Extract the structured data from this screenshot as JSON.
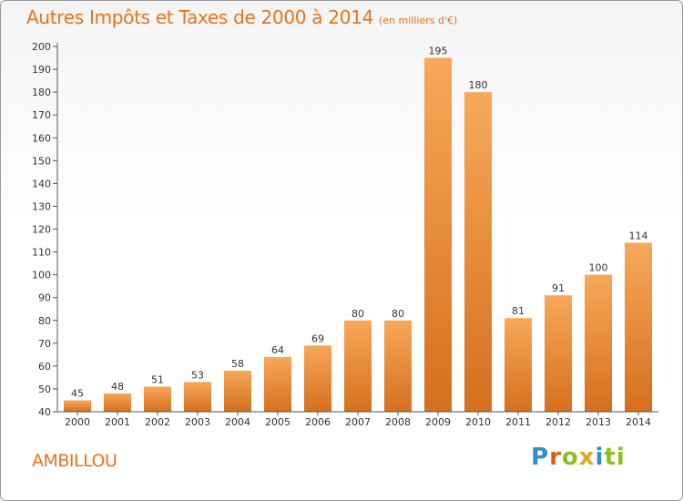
{
  "title": "Autres Impôts et Taxes de 2000 à 2014",
  "subtitle": "(en milliers d'€)",
  "commune": "AMBILLOU",
  "brand": "Proxiti",
  "colors": {
    "accent": "#e8731b",
    "bar_light": "#f7a85a",
    "bar_dark": "#d4701d"
  },
  "chart_data": {
    "type": "bar",
    "title": "Autres Impôts et Taxes de 2000 à 2014",
    "xlabel": "",
    "ylabel": "",
    "categories": [
      "2000",
      "2001",
      "2002",
      "2003",
      "2004",
      "2005",
      "2006",
      "2007",
      "2008",
      "2009",
      "2010",
      "2011",
      "2012",
      "2013",
      "2014"
    ],
    "values": [
      45,
      48,
      51,
      53,
      58,
      64,
      69,
      80,
      80,
      195,
      180,
      81,
      91,
      100,
      114
    ],
    "ylim": [
      40,
      200
    ],
    "yticks": [
      40,
      50,
      60,
      70,
      80,
      90,
      100,
      110,
      120,
      130,
      140,
      150,
      160,
      170,
      180,
      190,
      200
    ],
    "grid": false,
    "legend": "none"
  }
}
